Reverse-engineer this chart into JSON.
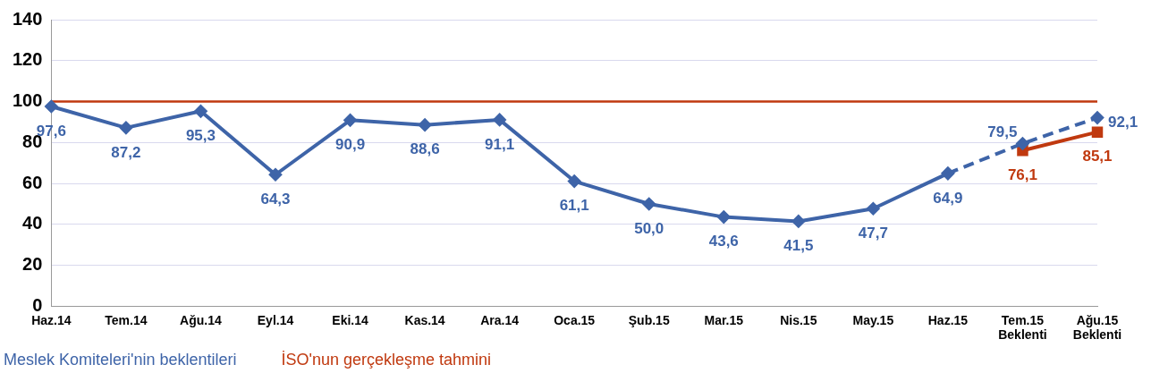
{
  "chart_data": {
    "type": "line",
    "categories": [
      "Haz.14",
      "Tem.14",
      "Ağu.14",
      "Eyl.14",
      "Eki.14",
      "Kas.14",
      "Ara.14",
      "Oca.15",
      "Şub.15",
      "Mar.15",
      "Nis.15",
      "May.15",
      "Haz.15",
      "Tem.15\nBeklenti",
      "Ağu.15\nBeklenti"
    ],
    "series": [
      {
        "name": "Meslek Komiteleri'nin beklentileri",
        "color": "#3e64a8",
        "marker": "diamond",
        "line_style": "solid",
        "values": [
          97.6,
          87.2,
          95.3,
          64.3,
          90.9,
          88.6,
          91.1,
          61.1,
          50.0,
          43.6,
          41.5,
          47.7,
          64.9,
          null,
          null
        ],
        "value_labels": [
          "97,6",
          "87,2",
          "95,3",
          "64,3",
          "90,9",
          "88,6",
          "91,1",
          "61,1",
          "50,0",
          "43,6",
          "41,5",
          "47,7",
          "64,9",
          null,
          null
        ]
      },
      {
        "color": "#3e64a8",
        "marker": "diamond",
        "line_style": "dashed",
        "values": [
          null,
          null,
          null,
          null,
          null,
          null,
          null,
          null,
          null,
          null,
          null,
          null,
          64.9,
          79.5,
          92.1
        ],
        "value_labels": [
          null,
          null,
          null,
          null,
          null,
          null,
          null,
          null,
          null,
          null,
          null,
          null,
          null,
          "79,5",
          "92,1"
        ]
      },
      {
        "name": "İSO'nun gerçekleşme tahmini",
        "color": "#c0390f",
        "marker": "square",
        "line_style": "solid",
        "values": [
          null,
          null,
          null,
          null,
          null,
          null,
          null,
          null,
          null,
          null,
          null,
          null,
          null,
          76.1,
          85.1
        ],
        "value_labels": [
          null,
          null,
          null,
          null,
          null,
          null,
          null,
          null,
          null,
          null,
          null,
          null,
          null,
          "76,1",
          "85,1"
        ]
      }
    ],
    "ylim": [
      0,
      140
    ],
    "yticks": [
      0,
      20,
      40,
      60,
      80,
      100,
      120,
      140
    ],
    "grid": "y",
    "legend": "bottom left",
    "ref_lines": [
      {
        "axis": "y",
        "value": 100,
        "color": "#c0390f"
      }
    ]
  }
}
